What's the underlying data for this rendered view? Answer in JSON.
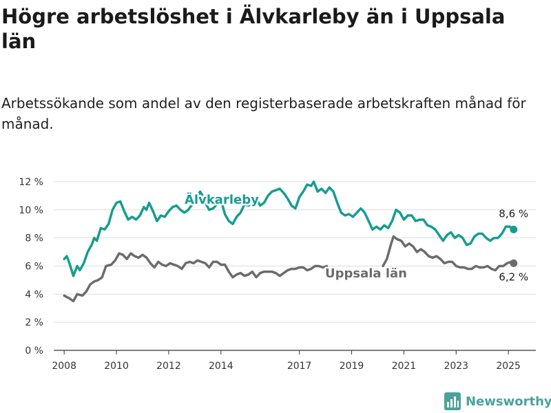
{
  "title": "Högre arbetslöshet i Älvkarleby än i Uppsala län",
  "subtitle": "Arbetssökande som andel av den registerbaserade arbetskraften månad för månad.",
  "brand": "Newsworthy",
  "colors": {
    "alvkarleby": "#169d91",
    "uppsala": "#6b6b6b",
    "brand": "#4aa39a"
  },
  "chart_data": {
    "type": "line",
    "xlim": [
      2007.6,
      2026.05
    ],
    "ylim": [
      0,
      12
    ],
    "x_ticks": [
      {
        "value": 2008,
        "label": "2008"
      },
      {
        "value": 2010,
        "label": "2010"
      },
      {
        "value": 2012,
        "label": "2012"
      },
      {
        "value": 2014,
        "label": "2014"
      },
      {
        "value": 2017,
        "label": "2017"
      },
      {
        "value": 2019,
        "label": "2019"
      },
      {
        "value": 2021,
        "label": "2021"
      },
      {
        "value": 2023,
        "label": "2023"
      },
      {
        "value": 2025,
        "label": "2025"
      }
    ],
    "y_ticks": [
      {
        "value": 0,
        "label": "0 %"
      },
      {
        "value": 2,
        "label": "2 %"
      },
      {
        "value": 4,
        "label": "4 %"
      },
      {
        "value": 6,
        "label": "6 %"
      },
      {
        "value": 8,
        "label": "8 %"
      },
      {
        "value": 10,
        "label": "10 %"
      },
      {
        "value": 12,
        "label": "12 %"
      }
    ],
    "series": [
      {
        "name": "Älvkarleby",
        "color": "#169d91",
        "end_label": "8,6 %",
        "points": [
          [
            2008.0,
            6.5
          ],
          [
            2008.1,
            6.7
          ],
          [
            2008.2,
            6.2
          ],
          [
            2008.35,
            5.3
          ],
          [
            2008.5,
            6.0
          ],
          [
            2008.6,
            5.7
          ],
          [
            2008.75,
            6.2
          ],
          [
            2008.9,
            7.0
          ],
          [
            2009.05,
            7.5
          ],
          [
            2009.15,
            8.0
          ],
          [
            2009.25,
            7.8
          ],
          [
            2009.4,
            8.7
          ],
          [
            2009.55,
            8.6
          ],
          [
            2009.7,
            9.0
          ],
          [
            2009.85,
            10.0
          ],
          [
            2010.0,
            10.5
          ],
          [
            2010.15,
            10.6
          ],
          [
            2010.3,
            9.9
          ],
          [
            2010.45,
            9.3
          ],
          [
            2010.6,
            9.5
          ],
          [
            2010.75,
            9.3
          ],
          [
            2010.9,
            9.6
          ],
          [
            2011.05,
            10.2
          ],
          [
            2011.15,
            10.0
          ],
          [
            2011.25,
            10.5
          ],
          [
            2011.4,
            9.9
          ],
          [
            2011.55,
            9.2
          ],
          [
            2011.7,
            9.6
          ],
          [
            2011.85,
            9.5
          ],
          [
            2012.0,
            9.9
          ],
          [
            2012.15,
            10.2
          ],
          [
            2012.3,
            10.3
          ],
          [
            2012.45,
            10.0
          ],
          [
            2012.6,
            9.8
          ],
          [
            2012.75,
            10.0
          ],
          [
            2012.9,
            10.4
          ],
          [
            2013.05,
            10.7
          ],
          [
            2013.2,
            11.3
          ],
          [
            2013.3,
            11.0
          ],
          [
            2013.4,
            10.5
          ],
          [
            2013.55,
            10.0
          ],
          [
            2013.7,
            10.1
          ],
          [
            2013.85,
            10.4
          ],
          [
            2014.0,
            10.7
          ],
          [
            2014.15,
            9.7
          ],
          [
            2014.3,
            9.2
          ],
          [
            2014.45,
            9.0
          ],
          [
            2014.6,
            9.5
          ],
          [
            2014.75,
            9.8
          ],
          [
            2014.9,
            10.4
          ],
          [
            2015.05,
            10.3
          ],
          [
            2015.2,
            10.5
          ],
          [
            2015.35,
            10.8
          ],
          [
            2015.5,
            10.3
          ],
          [
            2015.65,
            10.5
          ],
          [
            2015.8,
            11.0
          ],
          [
            2015.95,
            11.3
          ],
          [
            2016.1,
            11.4
          ],
          [
            2016.25,
            11.5
          ],
          [
            2016.4,
            11.2
          ],
          [
            2016.55,
            10.8
          ],
          [
            2016.7,
            10.3
          ],
          [
            2016.85,
            10.1
          ],
          [
            2017.0,
            10.9
          ],
          [
            2017.15,
            11.3
          ],
          [
            2017.3,
            11.8
          ],
          [
            2017.45,
            11.7
          ],
          [
            2017.55,
            12.0
          ],
          [
            2017.7,
            11.3
          ],
          [
            2017.85,
            11.5
          ],
          [
            2018.0,
            11.2
          ],
          [
            2018.15,
            11.6
          ],
          [
            2018.3,
            11.3
          ],
          [
            2018.45,
            10.5
          ],
          [
            2018.6,
            9.8
          ],
          [
            2018.75,
            9.6
          ],
          [
            2018.9,
            9.7
          ],
          [
            2019.05,
            9.5
          ],
          [
            2019.2,
            9.8
          ],
          [
            2019.35,
            10.1
          ],
          [
            2019.5,
            9.8
          ],
          [
            2019.65,
            9.2
          ],
          [
            2019.8,
            8.6
          ],
          [
            2019.95,
            8.8
          ],
          [
            2020.1,
            8.6
          ],
          [
            2020.25,
            8.9
          ],
          [
            2020.4,
            8.7
          ],
          [
            2020.55,
            9.2
          ],
          [
            2020.7,
            10.0
          ],
          [
            2020.85,
            9.8
          ],
          [
            2021.0,
            9.3
          ],
          [
            2021.15,
            9.6
          ],
          [
            2021.3,
            9.6
          ],
          [
            2021.45,
            9.2
          ],
          [
            2021.6,
            9.3
          ],
          [
            2021.75,
            9.3
          ],
          [
            2021.9,
            8.9
          ],
          [
            2022.05,
            8.8
          ],
          [
            2022.2,
            8.6
          ],
          [
            2022.35,
            8.2
          ],
          [
            2022.5,
            7.8
          ],
          [
            2022.65,
            8.2
          ],
          [
            2022.8,
            8.4
          ],
          [
            2022.95,
            8.0
          ],
          [
            2023.1,
            8.2
          ],
          [
            2023.25,
            8.0
          ],
          [
            2023.4,
            7.5
          ],
          [
            2023.55,
            7.6
          ],
          [
            2023.7,
            8.1
          ],
          [
            2023.85,
            8.3
          ],
          [
            2024.0,
            8.3
          ],
          [
            2024.15,
            8.0
          ],
          [
            2024.3,
            7.8
          ],
          [
            2024.45,
            8.0
          ],
          [
            2024.6,
            8.0
          ],
          [
            2024.75,
            8.3
          ],
          [
            2024.9,
            8.8
          ],
          [
            2025.05,
            8.8
          ],
          [
            2025.2,
            8.6
          ]
        ]
      },
      {
        "name": "Uppsala län",
        "color": "#6b6b6b",
        "end_label": "6,2 %",
        "points": [
          [
            2008.0,
            3.9
          ],
          [
            2008.2,
            3.7
          ],
          [
            2008.35,
            3.5
          ],
          [
            2008.5,
            4.0
          ],
          [
            2008.7,
            3.9
          ],
          [
            2008.85,
            4.2
          ],
          [
            2009.0,
            4.7
          ],
          [
            2009.15,
            4.9
          ],
          [
            2009.3,
            5.0
          ],
          [
            2009.45,
            5.2
          ],
          [
            2009.6,
            6.0
          ],
          [
            2009.8,
            6.1
          ],
          [
            2009.95,
            6.4
          ],
          [
            2010.1,
            6.9
          ],
          [
            2010.25,
            6.8
          ],
          [
            2010.4,
            6.5
          ],
          [
            2010.55,
            6.9
          ],
          [
            2010.7,
            6.7
          ],
          [
            2010.85,
            6.6
          ],
          [
            2011.0,
            6.8
          ],
          [
            2011.15,
            6.6
          ],
          [
            2011.3,
            6.2
          ],
          [
            2011.45,
            5.9
          ],
          [
            2011.6,
            6.3
          ],
          [
            2011.75,
            6.1
          ],
          [
            2011.9,
            6.0
          ],
          [
            2012.05,
            6.2
          ],
          [
            2012.2,
            6.1
          ],
          [
            2012.35,
            6.0
          ],
          [
            2012.5,
            5.8
          ],
          [
            2012.65,
            6.2
          ],
          [
            2012.8,
            6.3
          ],
          [
            2012.95,
            6.2
          ],
          [
            2013.1,
            6.4
          ],
          [
            2013.25,
            6.3
          ],
          [
            2013.4,
            6.2
          ],
          [
            2013.55,
            5.9
          ],
          [
            2013.7,
            6.3
          ],
          [
            2013.85,
            6.3
          ],
          [
            2014.0,
            6.1
          ],
          [
            2014.15,
            6.1
          ],
          [
            2014.3,
            5.6
          ],
          [
            2014.45,
            5.2
          ],
          [
            2014.6,
            5.4
          ],
          [
            2014.75,
            5.5
          ],
          [
            2014.9,
            5.3
          ],
          [
            2015.05,
            5.4
          ],
          [
            2015.2,
            5.6
          ],
          [
            2015.35,
            5.2
          ],
          [
            2015.5,
            5.5
          ],
          [
            2015.65,
            5.6
          ],
          [
            2015.8,
            5.6
          ],
          [
            2015.95,
            5.6
          ],
          [
            2016.1,
            5.5
          ],
          [
            2016.25,
            5.3
          ],
          [
            2016.4,
            5.5
          ],
          [
            2016.55,
            5.7
          ],
          [
            2016.7,
            5.8
          ],
          [
            2016.85,
            5.8
          ],
          [
            2017.0,
            5.9
          ],
          [
            2017.15,
            5.9
          ],
          [
            2017.3,
            5.7
          ],
          [
            2017.45,
            5.8
          ],
          [
            2017.6,
            6.0
          ],
          [
            2017.75,
            6.0
          ],
          [
            2017.9,
            5.9
          ],
          [
            2018.05,
            6.0
          ]
        ],
        "points_b": [
          [
            2020.2,
            6.0
          ],
          [
            2020.35,
            6.5
          ],
          [
            2020.5,
            7.5
          ],
          [
            2020.6,
            8.1
          ],
          [
            2020.75,
            7.9
          ],
          [
            2020.9,
            7.8
          ],
          [
            2021.05,
            7.4
          ],
          [
            2021.2,
            7.6
          ],
          [
            2021.35,
            7.4
          ],
          [
            2021.5,
            7.0
          ],
          [
            2021.65,
            7.2
          ],
          [
            2021.8,
            7.0
          ],
          [
            2021.95,
            6.7
          ],
          [
            2022.1,
            6.6
          ],
          [
            2022.25,
            6.7
          ],
          [
            2022.4,
            6.5
          ],
          [
            2022.55,
            6.2
          ],
          [
            2022.7,
            6.3
          ],
          [
            2022.85,
            6.3
          ],
          [
            2023.0,
            6.0
          ],
          [
            2023.15,
            5.9
          ],
          [
            2023.3,
            5.9
          ],
          [
            2023.45,
            5.8
          ],
          [
            2023.6,
            5.8
          ],
          [
            2023.75,
            6.0
          ],
          [
            2023.9,
            5.9
          ],
          [
            2024.05,
            5.9
          ],
          [
            2024.2,
            6.0
          ],
          [
            2024.35,
            5.8
          ],
          [
            2024.5,
            5.7
          ],
          [
            2024.65,
            6.0
          ],
          [
            2024.8,
            6.0
          ],
          [
            2024.95,
            6.2
          ],
          [
            2025.1,
            6.3
          ],
          [
            2025.2,
            6.2
          ]
        ]
      }
    ]
  }
}
